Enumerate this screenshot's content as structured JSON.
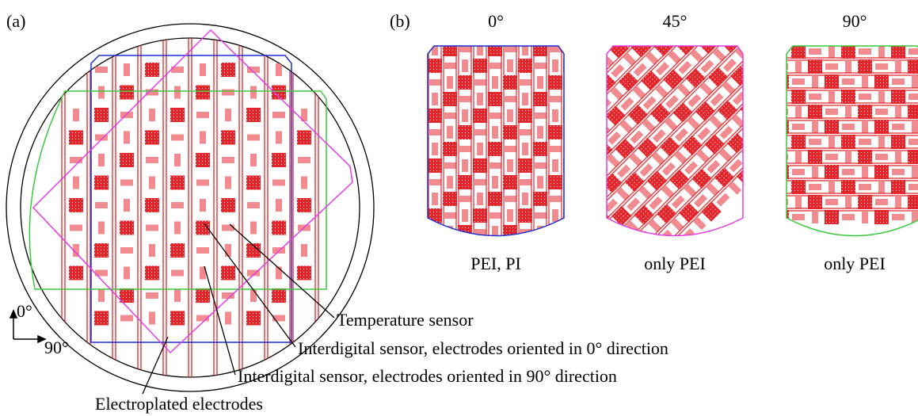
{
  "panel_a": {
    "label": "(a)",
    "axis_up": "0°",
    "axis_right": "90°",
    "annotations": [
      "Temperature sensor",
      "Interdigital sensor, electrodes oriented in 0° direction",
      "Interdigital sensor, electrodes oriented in 90° direction",
      "Electroplated electrodes"
    ]
  },
  "panel_b": {
    "label": "(b)",
    "samples": [
      {
        "angle": "0°",
        "caption": "PEI, PI"
      },
      {
        "angle": "45°",
        "caption": "only PEI"
      },
      {
        "angle": "90°",
        "caption": "only PEI"
      }
    ]
  }
}
